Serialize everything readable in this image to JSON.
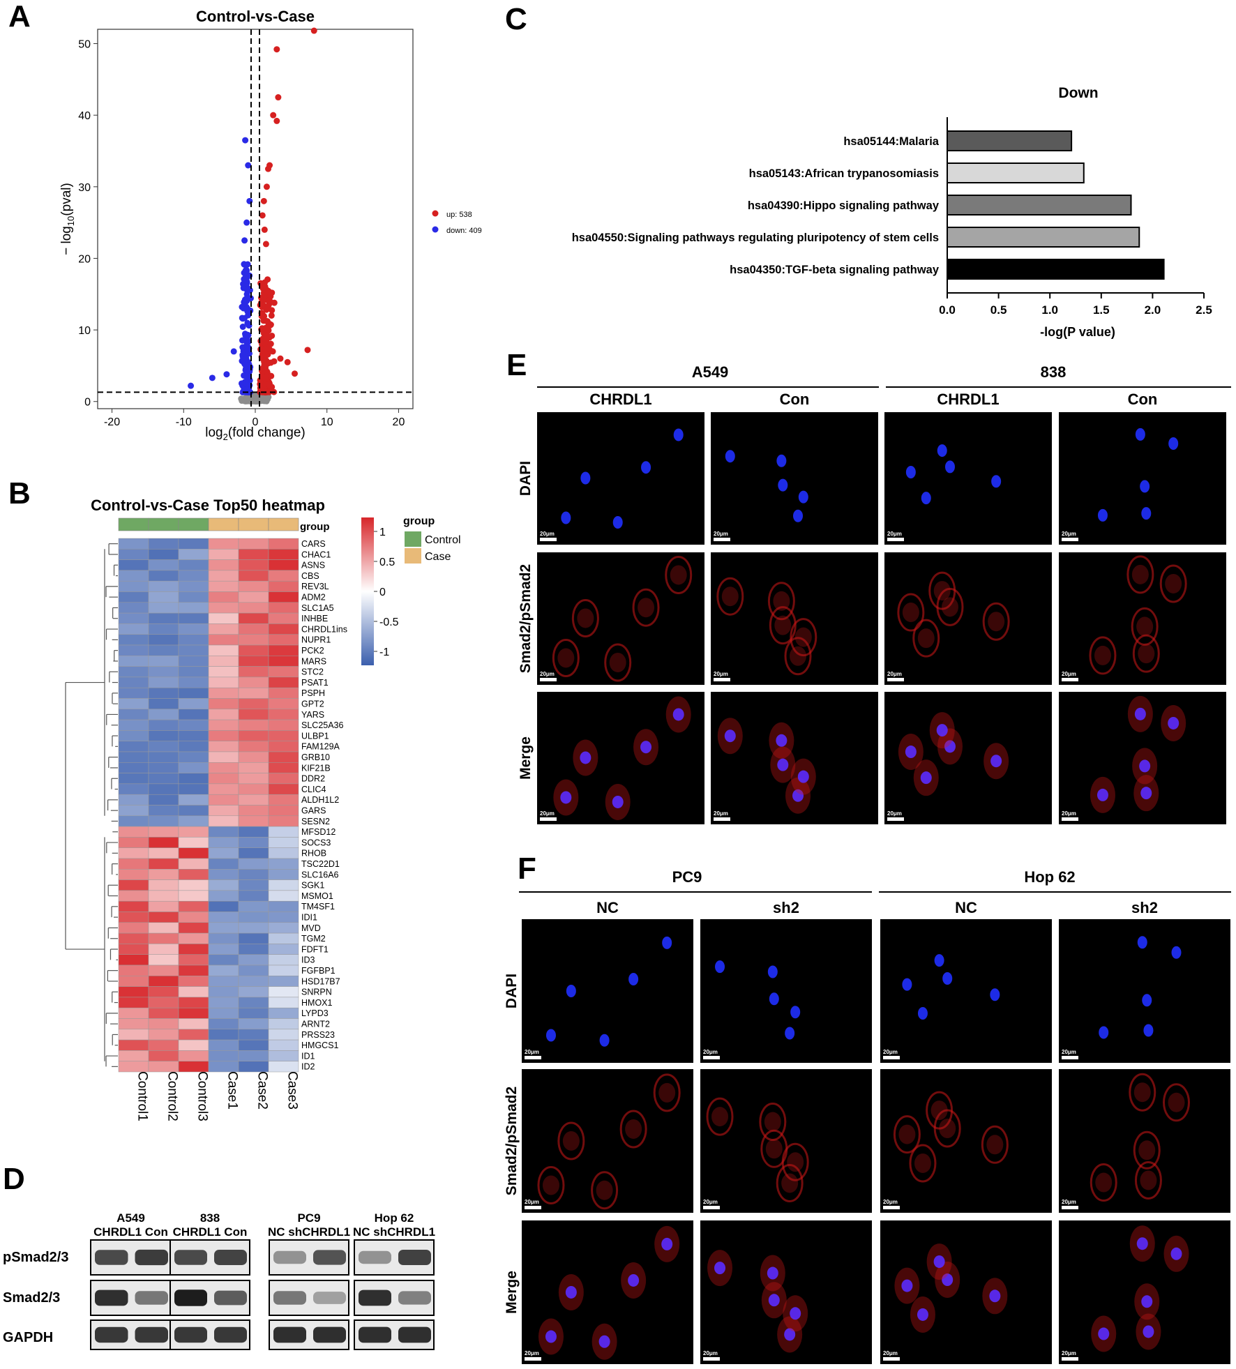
{
  "panels": {
    "A": "A",
    "B": "B",
    "C": "C",
    "D": "D",
    "E": "E",
    "F": "F"
  },
  "colors": {
    "up": "#d62020",
    "down": "#2a2ae6",
    "ns": "#8c8c8c",
    "control": "#6fa863",
    "case": "#e8ba78",
    "heat_high": "#d7262a",
    "heat_mid": "#ffffff",
    "heat_low": "#3b5fad",
    "cell_bg": "#000000",
    "dapi": "#2030ff",
    "smad": "#d01818"
  },
  "volcano": {
    "title": "Control-vs-Case",
    "xlabel_prefix": "log",
    "xlabel_sub": "2",
    "xlabel_suffix": "(fold change)",
    "ylabel_prefix": "− log",
    "ylabel_sub": "10",
    "ylabel_suffix": "(pval)",
    "xlim": [
      -22,
      22
    ],
    "ylim": [
      -1,
      52
    ],
    "xticks": [
      "-20",
      "-10",
      "0",
      "10",
      "20"
    ],
    "xtick_vals": [
      -20,
      -10,
      0,
      10,
      20
    ],
    "yticks": [
      "0",
      "10",
      "20",
      "30",
      "40",
      "50"
    ],
    "ytick_vals": [
      0,
      10,
      20,
      30,
      40,
      50
    ],
    "vlines": [
      -0.585,
      0.585
    ],
    "hline": 1.3,
    "legend": [
      {
        "label": "up: 538",
        "key": "up"
      },
      {
        "label": "down: 409",
        "key": "down"
      }
    ]
  },
  "heatmap": {
    "title": "Control-vs-Case Top50 heatmap",
    "group_label": "group",
    "legend_title": "group",
    "legend_items": [
      {
        "label": "Control",
        "key": "control"
      },
      {
        "label": "Case",
        "key": "case"
      }
    ],
    "scale_ticks": [
      "1",
      "0.5",
      "0",
      "-0.5",
      "-1"
    ],
    "scale_vals": [
      1,
      0.5,
      0,
      -0.5,
      -1
    ],
    "columns": [
      "Control1",
      "Control2",
      "Control3",
      "Case1",
      "Case2",
      "Case3"
    ],
    "genes": [
      "CARS",
      "CHAC1",
      "ASNS",
      "CBS",
      "REV3L",
      "ADM2",
      "SLC1A5",
      "INHBE",
      "CHRDL1ins",
      "NUPR1",
      "PCK2",
      "MARS",
      "STC2",
      "PSAT1",
      "PSPH",
      "GPT2",
      "YARS",
      "SLC25A36",
      "ULBP1",
      "FAM129A",
      "GRB10",
      "KIF21B",
      "DDR2",
      "CLIC4",
      "ALDH1L2",
      "GARS",
      "SESN2",
      "MFSD12",
      "SOCS3",
      "RHOB",
      "TSC22D1",
      "SLC16A6",
      "SGK1",
      "MSMO1",
      "TM4SF1",
      "IDI1",
      "MVD",
      "TGM2",
      "FDFT1",
      "ID3",
      "FGFBP1",
      "HSD17B7",
      "SNRPN",
      "HMOX1",
      "LYPD3",
      "ARNT2",
      "PRSS23",
      "HMGCS1",
      "ID1",
      "ID2"
    ]
  },
  "chart_data": {
    "type": "bar",
    "title": "Down",
    "categories": [
      "hsa05144:Malaria",
      "hsa05143:African trypanosomiasis",
      "hsa04390:Hippo signaling pathway",
      "hsa04550:Signaling pathways regulating pluripotency of stem cells",
      "hsa04350:TGF-beta signaling pathway"
    ],
    "values": [
      1.21,
      1.33,
      1.79,
      1.87,
      2.11
    ],
    "bar_colors": [
      "#5a5a5a",
      "#d8d8d8",
      "#7a7a7a",
      "#a5a5a5",
      "#000000"
    ],
    "xlabel": "-log(P value)",
    "xticks": [
      "0.0",
      "0.5",
      "1.0",
      "1.5",
      "2.0",
      "2.5"
    ],
    "xtick_vals": [
      0,
      0.5,
      1,
      1.5,
      2,
      2.5
    ],
    "xlim": [
      0,
      2.5
    ],
    "orientation": "horizontal"
  },
  "western": {
    "groups": [
      {
        "name": "A549",
        "lanes": "CHRDL1 Con",
        "bands": [
          [
            0.7,
            0.78
          ],
          [
            0.85,
            0.45
          ],
          [
            0.8,
            0.8
          ]
        ]
      },
      {
        "name": "838",
        "lanes": "CHRDL1 Con",
        "bands": [
          [
            0.7,
            0.74
          ],
          [
            0.95,
            0.6
          ],
          [
            0.8,
            0.8
          ]
        ]
      },
      {
        "name": "PC9",
        "lanes": "NC shCHRDL1",
        "bands": [
          [
            0.3,
            0.65
          ],
          [
            0.45,
            0.22
          ],
          [
            0.85,
            0.85
          ]
        ]
      },
      {
        "name": "Hop 62",
        "lanes": "NC shCHRDL1",
        "bands": [
          [
            0.3,
            0.75
          ],
          [
            0.85,
            0.4
          ],
          [
            0.85,
            0.85
          ]
        ]
      }
    ],
    "rows": [
      "pSmad2/3",
      "Smad2/3",
      "GAPDH"
    ]
  },
  "panelE": {
    "lines": [
      {
        "name": "A549"
      },
      {
        "name": "838"
      }
    ],
    "cols": [
      "CHRDL1",
      "Con",
      "CHRDL1",
      "Con"
    ],
    "rows": [
      "DAPI",
      "Smad2/pSmad2",
      "Merge"
    ],
    "scale": "20μm"
  },
  "panelF": {
    "lines": [
      {
        "name": "PC9"
      },
      {
        "name": "Hop 62"
      }
    ],
    "cols": [
      "NC",
      "sh2",
      "NC",
      "sh2"
    ],
    "rows": [
      "DAPI",
      "Smad2/pSmad2",
      "Merge"
    ],
    "scale": "20μm"
  }
}
